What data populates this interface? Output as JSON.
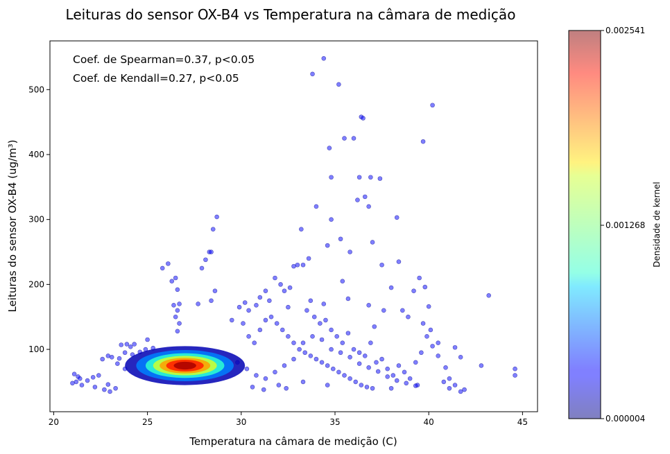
{
  "chart_data": {
    "type": "scatter",
    "title": "Leituras do sensor OX-B4 vs Temperatura na câmara de medição",
    "xlabel": "Temperatura na câmara de medição (C)",
    "ylabel": "Leituras do sensor OX-B4 (ug/m³)",
    "xlim": [
      19.8,
      45.8
    ],
    "ylim": [
      4,
      575
    ],
    "xticks": [
      20,
      25,
      30,
      35,
      40,
      45
    ],
    "yticks": [
      100,
      200,
      300,
      400,
      500
    ],
    "grid": false,
    "annotations": [
      "Coef. de Spearman=0.37, p<0.05",
      "Coef. de Kendall=0.27, p<0.05"
    ],
    "colorbar": {
      "label": "Densidade de kernel",
      "colormap": "jet",
      "alpha": 0.5,
      "ticks": [
        "0.002541",
        "0.001268",
        "0.000004"
      ],
      "tick_values": [
        0.002541,
        0.001268,
        4e-06
      ],
      "range": [
        4e-06,
        0.002541
      ]
    },
    "density_peak": {
      "x": 27.0,
      "y": 75
    },
    "points": [
      [
        21.1,
        62
      ],
      [
        21.3,
        58
      ],
      [
        21.4,
        55
      ],
      [
        21.2,
        50
      ],
      [
        21.5,
        45
      ],
      [
        21.0,
        48
      ],
      [
        21.8,
        52
      ],
      [
        22.1,
        57
      ],
      [
        22.4,
        60
      ],
      [
        22.2,
        42
      ],
      [
        22.7,
        38
      ],
      [
        22.9,
        46
      ],
      [
        23.0,
        35
      ],
      [
        23.3,
        40
      ],
      [
        22.6,
        85
      ],
      [
        22.9,
        90
      ],
      [
        23.1,
        88
      ],
      [
        23.5,
        86
      ],
      [
        23.6,
        107
      ],
      [
        23.9,
        108
      ],
      [
        24.1,
        104
      ],
      [
        24.3,
        108
      ],
      [
        23.8,
        95
      ],
      [
        24.2,
        92
      ],
      [
        24.6,
        96
      ],
      [
        24.9,
        100
      ],
      [
        25.0,
        115
      ],
      [
        25.3,
        102
      ],
      [
        23.4,
        78
      ],
      [
        23.8,
        70
      ],
      [
        25.8,
        225
      ],
      [
        26.1,
        232
      ],
      [
        26.3,
        205
      ],
      [
        26.5,
        210
      ],
      [
        26.6,
        192
      ],
      [
        26.7,
        170
      ],
      [
        26.6,
        160
      ],
      [
        26.5,
        150
      ],
      [
        26.7,
        140
      ],
      [
        26.6,
        128
      ],
      [
        26.4,
        168
      ],
      [
        27.9,
        225
      ],
      [
        28.1,
        238
      ],
      [
        28.3,
        250
      ],
      [
        28.4,
        250
      ],
      [
        28.5,
        285
      ],
      [
        28.7,
        304
      ],
      [
        28.6,
        190
      ],
      [
        28.4,
        175
      ],
      [
        27.7,
        170
      ],
      [
        29.5,
        145
      ],
      [
        29.9,
        165
      ],
      [
        30.2,
        172
      ],
      [
        30.4,
        160
      ],
      [
        30.8,
        168
      ],
      [
        31.0,
        180
      ],
      [
        31.3,
        190
      ],
      [
        31.5,
        175
      ],
      [
        31.8,
        210
      ],
      [
        32.1,
        200
      ],
      [
        32.3,
        190
      ],
      [
        32.6,
        195
      ],
      [
        32.8,
        228
      ],
      [
        33.0,
        230
      ],
      [
        33.2,
        285
      ],
      [
        33.3,
        230
      ],
      [
        33.6,
        240
      ],
      [
        33.8,
        524
      ],
      [
        34.0,
        320
      ],
      [
        34.4,
        548
      ],
      [
        34.6,
        260
      ],
      [
        34.7,
        410
      ],
      [
        34.8,
        365
      ],
      [
        34.8,
        300
      ],
      [
        35.2,
        508
      ],
      [
        35.3,
        270
      ],
      [
        35.4,
        205
      ],
      [
        35.8,
        250
      ],
      [
        35.5,
        425
      ],
      [
        36.0,
        425
      ],
      [
        36.2,
        330
      ],
      [
        36.3,
        365
      ],
      [
        36.4,
        458
      ],
      [
        36.5,
        456
      ],
      [
        36.6,
        335
      ],
      [
        36.8,
        320
      ],
      [
        36.9,
        365
      ],
      [
        37.0,
        265
      ],
      [
        37.4,
        363
      ],
      [
        37.5,
        230
      ],
      [
        38.0,
        195
      ],
      [
        38.3,
        303
      ],
      [
        38.4,
        235
      ],
      [
        38.6,
        160
      ],
      [
        39.2,
        190
      ],
      [
        39.5,
        210
      ],
      [
        39.7,
        420
      ],
      [
        39.8,
        196
      ],
      [
        40.0,
        166
      ],
      [
        40.2,
        476
      ],
      [
        40.5,
        110
      ],
      [
        40.9,
        72
      ],
      [
        41.1,
        55
      ],
      [
        41.4,
        103
      ],
      [
        41.7,
        88
      ],
      [
        41.9,
        38
      ],
      [
        42.8,
        75
      ],
      [
        43.2,
        183
      ],
      [
        44.6,
        70
      ],
      [
        44.6,
        60
      ],
      [
        33.5,
        160
      ],
      [
        33.9,
        150
      ],
      [
        34.2,
        140
      ],
      [
        34.5,
        145
      ],
      [
        34.8,
        130
      ],
      [
        35.1,
        120
      ],
      [
        35.4,
        110
      ],
      [
        35.7,
        125
      ],
      [
        36.0,
        100
      ],
      [
        36.3,
        95
      ],
      [
        36.6,
        90
      ],
      [
        36.9,
        110
      ],
      [
        37.2,
        80
      ],
      [
        37.5,
        85
      ],
      [
        37.8,
        70
      ],
      [
        38.1,
        60
      ],
      [
        38.4,
        75
      ],
      [
        38.7,
        65
      ],
      [
        39.0,
        55
      ],
      [
        39.3,
        80
      ],
      [
        39.6,
        95
      ],
      [
        39.9,
        120
      ],
      [
        40.2,
        105
      ],
      [
        40.5,
        90
      ],
      [
        40.8,
        50
      ],
      [
        41.1,
        40
      ],
      [
        41.4,
        45
      ],
      [
        41.7,
        35
      ],
      [
        39.4,
        45
      ],
      [
        38.0,
        40
      ],
      [
        30.1,
        140
      ],
      [
        30.4,
        120
      ],
      [
        30.7,
        110
      ],
      [
        31.0,
        130
      ],
      [
        31.3,
        145
      ],
      [
        31.6,
        150
      ],
      [
        31.9,
        140
      ],
      [
        32.2,
        130
      ],
      [
        32.5,
        120
      ],
      [
        32.8,
        110
      ],
      [
        33.1,
        100
      ],
      [
        33.4,
        95
      ],
      [
        33.7,
        90
      ],
      [
        34.0,
        85
      ],
      [
        34.3,
        80
      ],
      [
        34.6,
        75
      ],
      [
        34.9,
        70
      ],
      [
        35.2,
        65
      ],
      [
        35.5,
        60
      ],
      [
        35.8,
        55
      ],
      [
        36.1,
        50
      ],
      [
        36.4,
        45
      ],
      [
        36.7,
        42
      ],
      [
        37.0,
        40
      ],
      [
        32.0,
        45
      ],
      [
        32.4,
        40
      ],
      [
        31.2,
        38
      ],
      [
        30.6,
        42
      ],
      [
        33.3,
        50
      ],
      [
        34.6,
        45
      ],
      [
        29.8,
        80
      ],
      [
        30.3,
        70
      ],
      [
        30.8,
        60
      ],
      [
        31.3,
        55
      ],
      [
        31.8,
        65
      ],
      [
        32.3,
        75
      ],
      [
        32.8,
        85
      ],
      [
        33.3,
        110
      ],
      [
        33.8,
        120
      ],
      [
        34.3,
        115
      ],
      [
        34.8,
        100
      ],
      [
        35.3,
        95
      ],
      [
        35.8,
        88
      ],
      [
        36.3,
        78
      ],
      [
        36.8,
        72
      ],
      [
        37.3,
        66
      ],
      [
        37.8,
        58
      ],
      [
        38.3,
        52
      ],
      [
        38.8,
        48
      ],
      [
        39.3,
        44
      ],
      [
        32.5,
        165
      ],
      [
        33.7,
        175
      ],
      [
        34.4,
        170
      ],
      [
        35.7,
        178
      ],
      [
        36.8,
        168
      ],
      [
        37.6,
        160
      ],
      [
        38.9,
        150
      ],
      [
        39.7,
        140
      ],
      [
        40.1,
        130
      ],
      [
        37.1,
        135
      ]
    ],
    "density_field": [
      {
        "cx": 27.0,
        "cy": 75,
        "sx": 3.2,
        "sy": 30,
        "level": 0.05
      },
      {
        "cx": 27.0,
        "cy": 75,
        "sx": 2.6,
        "sy": 24,
        "level": 0.25
      },
      {
        "cx": 27.0,
        "cy": 75,
        "sx": 2.1,
        "sy": 19,
        "level": 0.42
      },
      {
        "cx": 27.0,
        "cy": 75,
        "sx": 1.7,
        "sy": 15,
        "level": 0.58
      },
      {
        "cx": 27.0,
        "cy": 75,
        "sx": 1.35,
        "sy": 12,
        "level": 0.72
      },
      {
        "cx": 27.0,
        "cy": 75,
        "sx": 1.0,
        "sy": 9,
        "level": 0.85
      },
      {
        "cx": 27.0,
        "cy": 75,
        "sx": 0.6,
        "sy": 6,
        "level": 0.96
      }
    ]
  }
}
